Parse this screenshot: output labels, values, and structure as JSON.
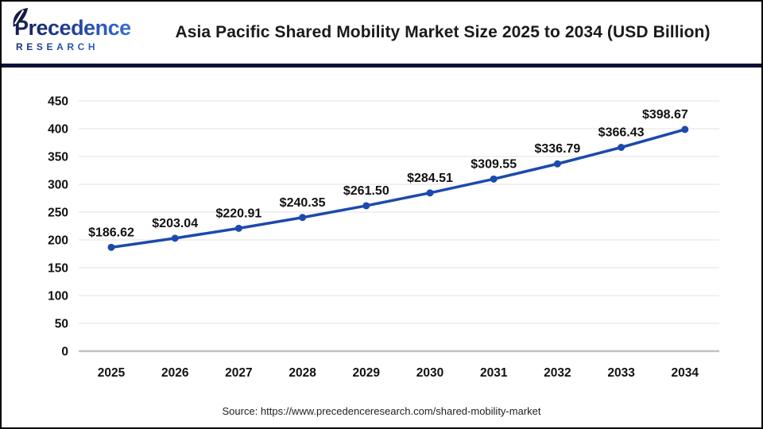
{
  "logo": {
    "brand": "Precedence",
    "sub": "RESEARCH",
    "leaf_color": "#141b47"
  },
  "header": {
    "title": "Asia Pacific Shared Mobility Market Size 2025 to 2034 (USD Billion)"
  },
  "footer": {
    "source": "Source: https://www.precedenceresearch.com/shared-mobility-market"
  },
  "colors": {
    "line": "#1c4aad",
    "marker": "#1c4aad",
    "divider": "#101238",
    "grid": "#e7e7e7",
    "axis": "#c2c2c2",
    "text": "#111111"
  },
  "chart_data": {
    "type": "line",
    "title": "Asia Pacific Shared Mobility Market Size 2025 to 2034 (USD Billion)",
    "unit": "USD Billion",
    "categories": [
      "2025",
      "2026",
      "2027",
      "2028",
      "2029",
      "2030",
      "2031",
      "2032",
      "2033",
      "2034"
    ],
    "values": [
      186.62,
      203.04,
      220.91,
      240.35,
      261.5,
      284.51,
      309.55,
      336.79,
      366.43,
      398.67
    ],
    "labels": [
      "$186.62",
      "$203.04",
      "$220.91",
      "$240.35",
      "$261.50",
      "$284.51",
      "$309.55",
      "$336.79",
      "$366.43",
      "$398.67"
    ],
    "xlabel": "",
    "ylabel": "",
    "ylim": [
      0,
      450
    ],
    "ytick_step": 50,
    "yticks": [
      0,
      50,
      100,
      150,
      200,
      250,
      300,
      350,
      400,
      450
    ],
    "grid": "horizontal",
    "legend": "none"
  }
}
